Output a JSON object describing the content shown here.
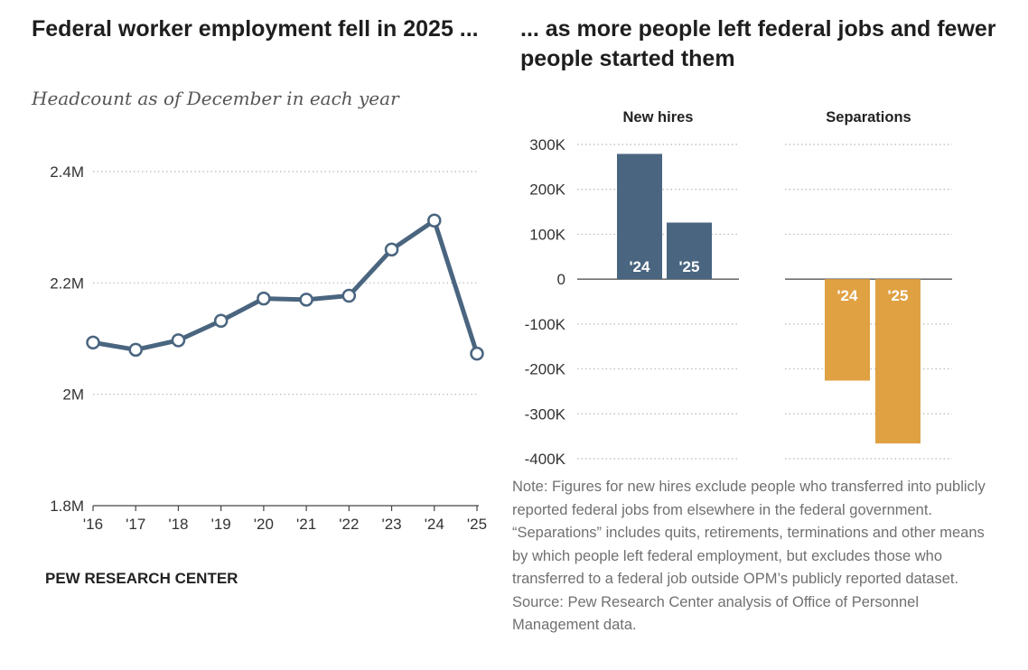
{
  "left_title": "Federal worker employment fell in 2025 ...",
  "right_title": "... as more people left federal jobs and fewer people started them",
  "subtitle": "Headcount as of December in each year",
  "source_label": "PEW RESEARCH CENTER",
  "note": "Note: Figures for new hires exclude people who transferred into publicly reported federal jobs from elsewhere in the federal government. “Separations” includes quits, retirements, terminations and other means by which people left federal employment, but excludes those who transferred to a federal job outside OPM’s publicly reported dataset.",
  "source": "Source: Pew Research Center analysis of Office of Personnel Management data.",
  "colors": {
    "line": "#4a657f",
    "hires": "#4a657f",
    "separations": "#e0a143",
    "grid": "#b8b8b8"
  },
  "chart_data": [
    {
      "type": "line",
      "title": "Federal worker employment fell in 2025 ...",
      "subtitle": "Headcount as of December in each year",
      "categories": [
        "'16",
        "'17",
        "'18",
        "'19",
        "'20",
        "'21",
        "'22",
        "'23",
        "'24",
        "'25"
      ],
      "values": [
        2.093,
        2.08,
        2.097,
        2.132,
        2.172,
        2.17,
        2.177,
        2.26,
        2.312,
        2.073
      ],
      "ylim": [
        1.8,
        2.4
      ],
      "yticks": [
        1.8,
        2.0,
        2.2,
        2.4
      ],
      "ytick_labels": [
        "1.8M",
        "2M",
        "2.2M",
        "2.4M"
      ],
      "grid": true
    },
    {
      "type": "bar",
      "title": "... as more people left federal jobs and fewer people started them",
      "panels": [
        {
          "name": "New hires",
          "categories": [
            "'24",
            "'25"
          ],
          "values": [
            279000,
            126000
          ]
        },
        {
          "name": "Separations",
          "categories": [
            "'24",
            "'25"
          ],
          "values": [
            -226000,
            -366000
          ]
        }
      ],
      "ylim": [
        -400000,
        300000
      ],
      "yticks": [
        300000,
        200000,
        100000,
        0,
        -100000,
        -200000,
        -300000,
        -400000
      ],
      "ytick_labels": [
        "300K",
        "200K",
        "100K",
        "0",
        "-100K",
        "-200K",
        "-300K",
        "-400K"
      ],
      "grid": true
    }
  ]
}
